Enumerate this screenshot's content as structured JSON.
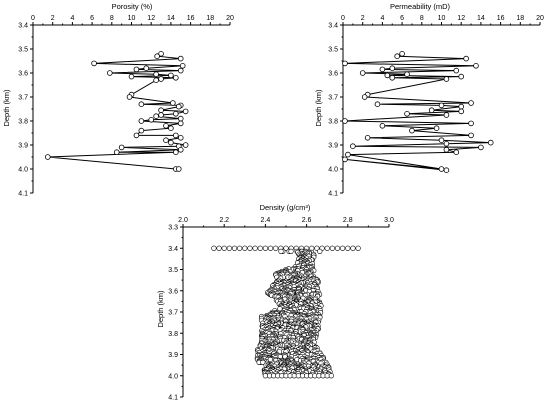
{
  "chart_data": [
    {
      "type": "line",
      "xlabel": "Porosity (%)",
      "ylabel": "Depth (km)",
      "xlim": [
        0,
        20
      ],
      "ylim": [
        3.4,
        4.1
      ],
      "xticks": [
        "0",
        "2",
        "4",
        "6",
        "8",
        "10",
        "12",
        "14",
        "16",
        "18",
        "20"
      ],
      "yticks": [
        "3.4",
        "3.5",
        "3.6",
        "3.7",
        "3.8",
        "3.9",
        "4.0",
        "4.1"
      ],
      "x_axis_position": "top",
      "y_reversed": true,
      "series": [
        {
          "x": [
            13.0,
            12.6,
            15.0,
            6.2,
            15.2,
            11.5,
            10.5,
            15.0,
            7.8,
            12.5,
            14.0,
            10.0,
            14.5,
            13.0,
            12.5,
            10.0,
            9.8,
            14.2,
            11.0,
            15.0,
            14.8,
            13.0,
            15.5,
            14.5,
            13.0,
            12.5,
            15.0,
            12.0,
            11.0,
            15.0,
            13.5,
            14.0,
            11.0,
            10.5,
            14.5,
            15.0,
            13.5,
            14.0,
            15.5,
            14.8,
            9.0,
            15.0,
            8.5,
            14.5,
            1.5,
            14.5,
            14.8
          ],
          "y": [
            3.52,
            3.53,
            3.54,
            3.56,
            3.57,
            3.58,
            3.585,
            3.59,
            3.6,
            3.605,
            3.61,
            3.615,
            3.62,
            3.625,
            3.63,
            3.69,
            3.7,
            3.725,
            3.73,
            3.735,
            3.74,
            3.755,
            3.76,
            3.77,
            3.775,
            3.78,
            3.79,
            3.795,
            3.8,
            3.81,
            3.82,
            3.83,
            3.84,
            3.86,
            3.86,
            3.87,
            3.88,
            3.89,
            3.9,
            3.905,
            3.91,
            3.92,
            3.93,
            3.93,
            3.95,
            4.0,
            4.0
          ]
        }
      ]
    },
    {
      "type": "line",
      "xlabel": "Permeability (mD)",
      "ylabel": "Depth (km)",
      "xlim": [
        0,
        20
      ],
      "ylim": [
        3.4,
        4.1
      ],
      "xticks": [
        "0",
        "2",
        "4",
        "6",
        "8",
        "10",
        "12",
        "14",
        "16",
        "18",
        "20"
      ],
      "yticks": [
        "3.4",
        "3.5",
        "3.6",
        "3.7",
        "3.8",
        "3.9",
        "4.0",
        "4.1"
      ],
      "x_axis_position": "top",
      "y_reversed": true,
      "series": [
        {
          "x": [
            6.0,
            5.5,
            12.5,
            0.2,
            13.5,
            5.0,
            4.0,
            11.5,
            2.0,
            6.5,
            4.5,
            12.0,
            5.0,
            10.5,
            2.5,
            2.2,
            13.0,
            3.5,
            10.0,
            12.0,
            9.0,
            12.0,
            6.5,
            10.5,
            0.2,
            13.0,
            4.0,
            9.5,
            7.0,
            13.0,
            2.5,
            10.0,
            15.0,
            10.5,
            1.0,
            14.0,
            10.5,
            11.5,
            0.5,
            10.0,
            0.2,
            10.5
          ],
          "y": [
            3.52,
            3.53,
            3.54,
            3.56,
            3.57,
            3.58,
            3.585,
            3.59,
            3.6,
            3.605,
            3.61,
            3.615,
            3.62,
            3.625,
            3.69,
            3.7,
            3.725,
            3.73,
            3.735,
            3.74,
            3.755,
            3.76,
            3.77,
            3.775,
            3.8,
            3.81,
            3.82,
            3.83,
            3.84,
            3.86,
            3.87,
            3.88,
            3.89,
            3.895,
            3.905,
            3.91,
            3.92,
            3.93,
            3.94,
            4.0,
            3.96,
            4.005
          ]
        }
      ]
    },
    {
      "type": "scatter",
      "xlabel": "Density (g/cm³)",
      "ylabel": "Depth (km)",
      "xlim": [
        2.0,
        3.0
      ],
      "ylim": [
        3.3,
        4.1
      ],
      "xticks": [
        "2.0",
        "2.2",
        "2.4",
        "2.6",
        "2.8",
        "3.0"
      ],
      "yticks": [
        "3.3",
        "3.4",
        "3.5",
        "3.6",
        "3.7",
        "3.8",
        "3.9",
        "4.0",
        "4.1"
      ],
      "x_axis_position": "top",
      "y_reversed": true,
      "depth_range": [
        3.4,
        4.0
      ],
      "density_envelope": [
        {
          "depth": 3.4,
          "left": 2.15,
          "right": 2.85
        },
        {
          "depth": 3.42,
          "left": 2.56,
          "right": 2.64
        },
        {
          "depth": 3.48,
          "left": 2.55,
          "right": 2.63
        },
        {
          "depth": 3.52,
          "left": 2.45,
          "right": 2.64
        },
        {
          "depth": 3.56,
          "left": 2.45,
          "right": 2.66
        },
        {
          "depth": 3.6,
          "left": 2.4,
          "right": 2.66
        },
        {
          "depth": 3.64,
          "left": 2.45,
          "right": 2.67
        },
        {
          "depth": 3.68,
          "left": 2.48,
          "right": 2.67
        },
        {
          "depth": 3.72,
          "left": 2.38,
          "right": 2.67
        },
        {
          "depth": 3.78,
          "left": 2.38,
          "right": 2.66
        },
        {
          "depth": 3.84,
          "left": 2.38,
          "right": 2.64
        },
        {
          "depth": 3.88,
          "left": 2.36,
          "right": 2.66
        },
        {
          "depth": 3.92,
          "left": 2.36,
          "right": 2.69
        },
        {
          "depth": 3.96,
          "left": 2.38,
          "right": 2.71
        },
        {
          "depth": 4.0,
          "left": 2.4,
          "right": 2.72
        }
      ]
    }
  ]
}
